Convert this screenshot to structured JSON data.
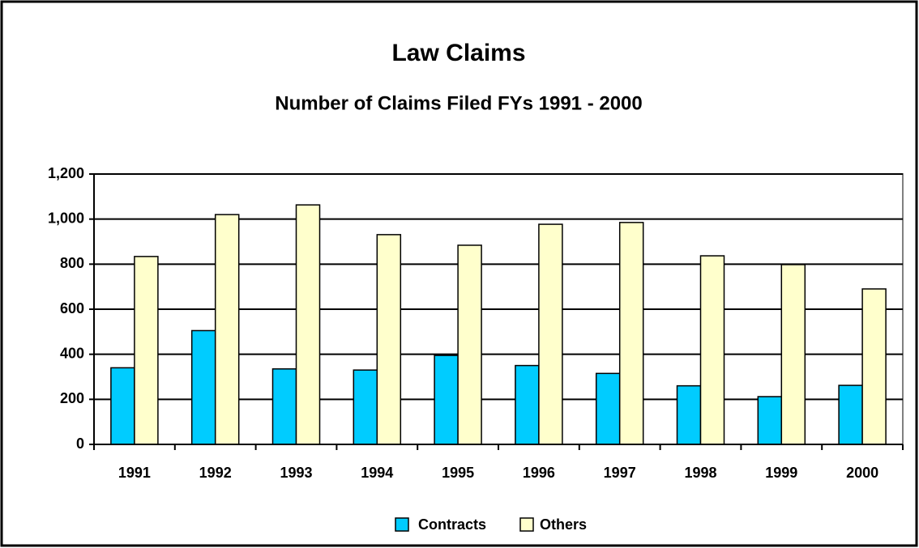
{
  "chart_data": {
    "type": "bar",
    "title": "Law Claims",
    "subtitle": "Number of Claims Filed FYs 1991 - 2000",
    "categories": [
      "1991",
      "1992",
      "1993",
      "1994",
      "1995",
      "1996",
      "1997",
      "1998",
      "1999",
      "2000"
    ],
    "series": [
      {
        "name": "Contracts",
        "color": "#00ccff",
        "values": [
          340,
          505,
          335,
          330,
          395,
          350,
          315,
          260,
          212,
          262
        ]
      },
      {
        "name": "Others",
        "color": "#ffffcc",
        "values": [
          834,
          1020,
          1063,
          931,
          884,
          977,
          985,
          837,
          798,
          690
        ]
      }
    ],
    "ylim": [
      0,
      1200
    ],
    "yticks": [
      0,
      200,
      400,
      600,
      800,
      {
        "value": 1000,
        "label": "1,000"
      },
      {
        "value": 1200,
        "label": "1,200"
      }
    ],
    "grid": true,
    "legend": "bottom"
  }
}
